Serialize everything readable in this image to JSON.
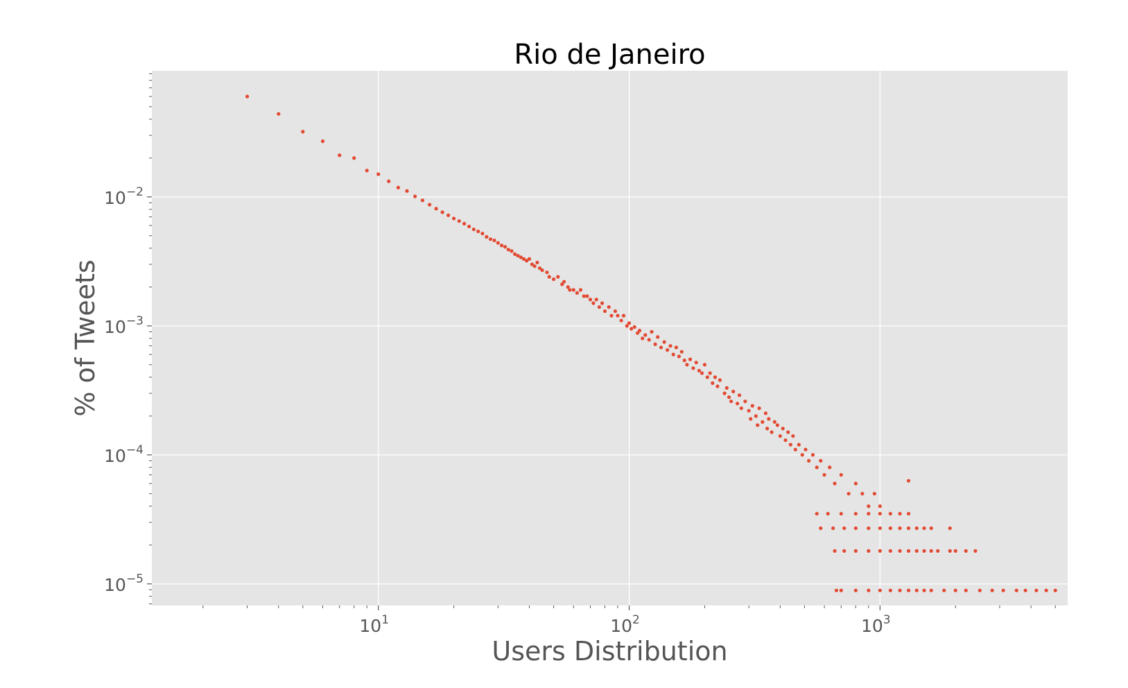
{
  "chart_data": {
    "type": "scatter",
    "title": "Rio de Janeiro",
    "xlabel": "Users Distribution",
    "ylabel": "% of Tweets",
    "xscale": "log",
    "yscale": "log",
    "xlim": [
      1.25,
      5600
    ],
    "ylim": [
      6.8e-06,
      0.095
    ],
    "grid": true,
    "colors": {
      "marker": "#E24A33",
      "plot_background": "#E5E5E5",
      "grid": "#FFFFFF",
      "text": "#555555"
    },
    "x_ticks": [
      {
        "base": "10",
        "exp": "1",
        "value": 10
      },
      {
        "base": "10",
        "exp": "2",
        "value": 100
      },
      {
        "base": "10",
        "exp": "3",
        "value": 1000
      }
    ],
    "y_ticks": [
      {
        "base": "10",
        "exp": "−2",
        "value": 0.01
      },
      {
        "base": "10",
        "exp": "−3",
        "value": 0.001
      },
      {
        "base": "10",
        "exp": "−4",
        "value": 0.0001
      },
      {
        "base": "10",
        "exp": "−5",
        "value": 1e-05
      }
    ],
    "series": [
      {
        "points": [
          [
            3,
            0.06
          ],
          [
            4,
            0.044
          ],
          [
            5,
            0.032
          ],
          [
            6,
            0.027
          ],
          [
            7,
            0.021
          ],
          [
            8,
            0.02
          ],
          [
            9,
            0.016
          ],
          [
            10,
            0.015
          ],
          [
            11,
            0.0132
          ],
          [
            12,
            0.0118
          ],
          [
            13,
            0.0111
          ],
          [
            14,
            0.0101
          ],
          [
            15,
            0.0094
          ],
          [
            16,
            0.0087
          ],
          [
            17,
            0.0081
          ],
          [
            18,
            0.0076
          ],
          [
            19,
            0.0072
          ],
          [
            20,
            0.0068
          ],
          [
            21,
            0.0065
          ],
          [
            22,
            0.0062
          ],
          [
            23,
            0.0059
          ],
          [
            24,
            0.0056
          ],
          [
            25,
            0.0054
          ],
          [
            26,
            0.0052
          ],
          [
            27,
            0.0049
          ],
          [
            28,
            0.0047
          ],
          [
            29,
            0.0046
          ],
          [
            30,
            0.0044
          ],
          [
            31,
            0.0042
          ],
          [
            32,
            0.0041
          ],
          [
            33,
            0.0039
          ],
          [
            34,
            0.0038
          ],
          [
            35,
            0.0036
          ],
          [
            36,
            0.0035
          ],
          [
            37,
            0.0034
          ],
          [
            38,
            0.0033
          ],
          [
            39,
            0.0032
          ],
          [
            40,
            0.0033
          ],
          [
            41,
            0.003
          ],
          [
            42,
            0.0029
          ],
          [
            43,
            0.0031
          ],
          [
            44,
            0.0028
          ],
          [
            45,
            0.0027
          ],
          [
            47,
            0.0026
          ],
          [
            48,
            0.0024
          ],
          [
            50,
            0.0023
          ],
          [
            52,
            0.0024
          ],
          [
            54,
            0.0021
          ],
          [
            55,
            0.0022
          ],
          [
            57,
            0.002
          ],
          [
            58,
            0.0019
          ],
          [
            60,
            0.0019
          ],
          [
            62,
            0.0018
          ],
          [
            64,
            0.0019
          ],
          [
            66,
            0.0017
          ],
          [
            68,
            0.0017
          ],
          [
            70,
            0.0016
          ],
          [
            72,
            0.0015
          ],
          [
            74,
            0.0016
          ],
          [
            76,
            0.0014
          ],
          [
            78,
            0.0015
          ],
          [
            80,
            0.0013
          ],
          [
            83,
            0.0014
          ],
          [
            85,
            0.0012
          ],
          [
            88,
            0.0013
          ],
          [
            90,
            0.0012
          ],
          [
            93,
            0.0011
          ],
          [
            95,
            0.0012
          ],
          [
            98,
            0.001
          ],
          [
            100,
            0.00105
          ],
          [
            102,
            0.00095
          ],
          [
            105,
            0.00098
          ],
          [
            108,
            0.00088
          ],
          [
            110,
            0.00092
          ],
          [
            113,
            0.0008
          ],
          [
            116,
            0.00085
          ],
          [
            120,
            0.00078
          ],
          [
            123,
            0.0009
          ],
          [
            127,
            0.00072
          ],
          [
            130,
            0.00082
          ],
          [
            134,
            0.00068
          ],
          [
            138,
            0.00075
          ],
          [
            142,
            0.00065
          ],
          [
            146,
            0.0007
          ],
          [
            150,
            0.0006
          ],
          [
            154,
            0.00068
          ],
          [
            158,
            0.00058
          ],
          [
            162,
            0.00063
          ],
          [
            166,
            0.00054
          ],
          [
            170,
            0.0005
          ],
          [
            175,
            0.00055
          ],
          [
            180,
            0.00047
          ],
          [
            185,
            0.00052
          ],
          [
            190,
            0.00045
          ],
          [
            195,
            0.00043
          ],
          [
            200,
            0.0005
          ],
          [
            205,
            0.0004
          ],
          [
            210,
            0.00043
          ],
          [
            215,
            0.00036
          ],
          [
            220,
            0.0004
          ],
          [
            225,
            0.00034
          ],
          [
            230,
            0.00038
          ],
          [
            240,
            0.0003
          ],
          [
            245,
            0.00033
          ],
          [
            250,
            0.00028
          ],
          [
            255,
            0.00026
          ],
          [
            260,
            0.00031
          ],
          [
            270,
            0.00025
          ],
          [
            275,
            0.00029
          ],
          [
            280,
            0.00023
          ],
          [
            290,
            0.00026
          ],
          [
            300,
            0.00022
          ],
          [
            305,
            0.00019
          ],
          [
            310,
            0.00024
          ],
          [
            320,
            0.0002
          ],
          [
            325,
            0.00017
          ],
          [
            330,
            0.00023
          ],
          [
            340,
            0.00018
          ],
          [
            350,
            0.00021
          ],
          [
            355,
            0.00016
          ],
          [
            360,
            0.00019
          ],
          [
            370,
            0.00015
          ],
          [
            380,
            0.00018
          ],
          [
            390,
            0.00017
          ],
          [
            400,
            0.00014
          ],
          [
            410,
            0.00016
          ],
          [
            420,
            0.00013
          ],
          [
            430,
            0.00015
          ],
          [
            440,
            0.00012
          ],
          [
            450,
            0.00014
          ],
          [
            460,
            0.00011
          ],
          [
            475,
            0.00012
          ],
          [
            490,
            0.0001
          ],
          [
            505,
            0.00011
          ],
          [
            520,
            9e-05
          ],
          [
            540,
            0.0001
          ],
          [
            560,
            8e-05
          ],
          [
            580,
            9e-05
          ],
          [
            600,
            7e-05
          ],
          [
            630,
            8e-05
          ],
          [
            660,
            6e-05
          ],
          [
            700,
            7e-05
          ],
          [
            750,
            5e-05
          ],
          [
            800,
            6e-05
          ],
          [
            850,
            5e-05
          ],
          [
            900,
            4e-05
          ],
          [
            950,
            5e-05
          ],
          [
            1000,
            4e-05
          ],
          [
            1300,
            6.3e-05
          ],
          [
            560,
            3.5e-05
          ],
          [
            620,
            3.5e-05
          ],
          [
            700,
            3.5e-05
          ],
          [
            800,
            3.5e-05
          ],
          [
            900,
            3.5e-05
          ],
          [
            1000,
            3.5e-05
          ],
          [
            1100,
            3.5e-05
          ],
          [
            1200,
            3.5e-05
          ],
          [
            1300,
            3.5e-05
          ],
          [
            580,
            2.7e-05
          ],
          [
            650,
            2.7e-05
          ],
          [
            720,
            2.7e-05
          ],
          [
            800,
            2.7e-05
          ],
          [
            900,
            2.7e-05
          ],
          [
            1000,
            2.7e-05
          ],
          [
            1100,
            2.7e-05
          ],
          [
            1200,
            2.7e-05
          ],
          [
            1300,
            2.7e-05
          ],
          [
            1400,
            2.7e-05
          ],
          [
            1500,
            2.7e-05
          ],
          [
            1600,
            2.7e-05
          ],
          [
            1900,
            2.7e-05
          ],
          [
            660,
            1.8e-05
          ],
          [
            720,
            1.8e-05
          ],
          [
            800,
            1.8e-05
          ],
          [
            900,
            1.8e-05
          ],
          [
            1000,
            1.8e-05
          ],
          [
            1100,
            1.8e-05
          ],
          [
            1200,
            1.8e-05
          ],
          [
            1300,
            1.8e-05
          ],
          [
            1400,
            1.8e-05
          ],
          [
            1500,
            1.8e-05
          ],
          [
            1600,
            1.8e-05
          ],
          [
            1700,
            1.8e-05
          ],
          [
            1900,
            1.8e-05
          ],
          [
            2000,
            1.8e-05
          ],
          [
            2200,
            1.8e-05
          ],
          [
            2400,
            1.8e-05
          ],
          [
            670,
            8.9e-06
          ],
          [
            700,
            8.9e-06
          ],
          [
            800,
            8.9e-06
          ],
          [
            900,
            8.9e-06
          ],
          [
            1000,
            8.9e-06
          ],
          [
            1100,
            8.9e-06
          ],
          [
            1200,
            8.9e-06
          ],
          [
            1300,
            8.9e-06
          ],
          [
            1400,
            8.9e-06
          ],
          [
            1500,
            8.9e-06
          ],
          [
            1600,
            8.9e-06
          ],
          [
            1800,
            8.9e-06
          ],
          [
            2000,
            8.9e-06
          ],
          [
            2200,
            8.9e-06
          ],
          [
            2500,
            8.9e-06
          ],
          [
            2800,
            8.9e-06
          ],
          [
            3100,
            8.9e-06
          ],
          [
            3500,
            8.9e-06
          ],
          [
            3800,
            8.9e-06
          ],
          [
            4200,
            8.9e-06
          ],
          [
            4600,
            8.9e-06
          ],
          [
            5000,
            8.9e-06
          ]
        ]
      }
    ]
  }
}
